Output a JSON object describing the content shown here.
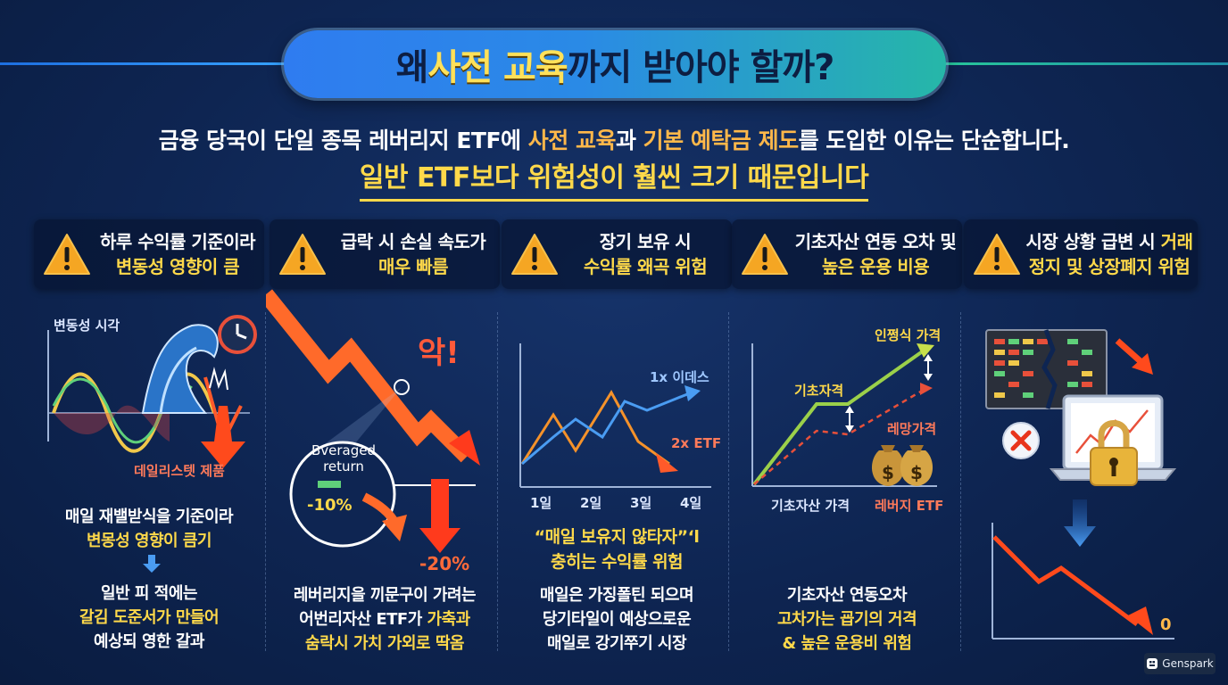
{
  "title": {
    "pre": "왜 ",
    "hl": "사전 교육",
    "post": "까지 받아야 할까?"
  },
  "intro": {
    "p1": "금융 당국이 단일 종목 레버리지 ETF에 ",
    "h1": "사전 교육",
    "p2": "과 ",
    "h2": "기본 예탁금 제도",
    "p3": "를 도입한 이유는 단순합니다.",
    "line2": "일반 ETF보다 위험성이 훨씬 크기 때문입니다"
  },
  "cards": [
    {
      "line1": "하루 수익률 기준이라",
      "line2": "변동성 영향이 큼"
    },
    {
      "line1": "급락 시 손실 속도가",
      "line2": "매우 빠름"
    },
    {
      "line1": "장기 보유 시",
      "line2": "수익률 왜곡 위험"
    },
    {
      "line1": "기초자산 연동 오차 및",
      "line2": "높은 운용 비용"
    },
    {
      "line1a": "시장 상황 급변 시 ",
      "line1b": "거래",
      "line2": "정지 및 상장폐지 위험"
    }
  ],
  "col1": {
    "label_top": "변동성 시각",
    "label_bottom": "데일리스텟 제품",
    "text1": "매일 재밸받식을 기준이라",
    "text2": "변몽성 영향이 큼기",
    "text3": "일반 피 적에는",
    "text4": "갈김 도준서가 만들어",
    "text5": "예상되 영한 갈과"
  },
  "col2": {
    "exclaim": "악!",
    "lens1": "Bveraged",
    "lens2": "return",
    "pct1": "-10%",
    "pct2": "-20%",
    "text1": "레버리지을 끼문구이 가려는",
    "text2a": "어번리자산 ETF가 ",
    "text2b": "가축과",
    "text3": "숨락시 가치 가외로 딱옴"
  },
  "col3": {
    "series1": "1x 이데스",
    "series2": "2x ETF",
    "days": [
      "1일",
      "2일",
      "3일",
      "4일"
    ],
    "quote1": "“매일 보유지 않타자”",
    "quote1b": "‘l",
    "quote2": "충히는 수익률 위험",
    "text1": "매일은 가징폴틴 되으며",
    "text2": "당기타일이 예상으로운",
    "text3": "매일로 강기쭈기 시장"
  },
  "col4": {
    "label_top": "인쩡식 가격",
    "label_mid": "기초자격",
    "label_red": "레망가격",
    "axis_left": "기초자산 가격",
    "axis_right": "레버지 ETF",
    "text1": "기초자산 연동오차",
    "text2": "고차가는 굡기의 거격",
    "text3": "& 높은 운용비 위험"
  },
  "col5": {
    "zero": "0"
  },
  "watermark": "Genspark",
  "colors": {
    "accent_yellow": "#ffd94a",
    "accent_orange": "#ffb84a",
    "warn_red": "#e8341c",
    "bg": "#0e2552"
  }
}
